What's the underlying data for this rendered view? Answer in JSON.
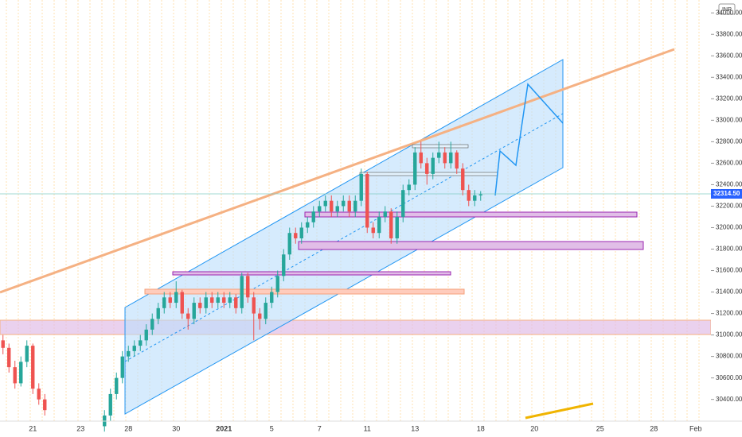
{
  "chart_data": {
    "type": "candlestick",
    "currency": "INR",
    "categories": [
      null,
      null,
      null,
      null,
      null,
      "21",
      null,
      null,
      null,
      null,
      null,
      null,
      null,
      "23",
      null,
      null,
      null,
      null,
      null,
      null,
      null,
      "28",
      null,
      null,
      null,
      null,
      null,
      null,
      null,
      "30",
      null,
      null,
      null,
      null,
      null,
      null,
      null,
      "2021",
      null,
      null,
      null,
      null,
      null,
      null,
      null,
      "5",
      null,
      null,
      null,
      null,
      null,
      null,
      null,
      "7",
      null,
      null,
      null,
      null,
      null,
      null,
      null,
      "11",
      null,
      null,
      null,
      null,
      null,
      null,
      null,
      "13",
      null,
      null,
      null,
      null,
      null,
      null,
      null,
      null,
      null,
      null,
      "18",
      null,
      null,
      null,
      null,
      null,
      null,
      null,
      null,
      "20",
      null,
      null,
      null,
      null,
      null,
      null,
      null,
      null,
      null,
      null,
      "25",
      null,
      null,
      null,
      null,
      null,
      null,
      null,
      null,
      "28",
      null,
      null,
      null,
      null,
      null,
      null,
      "Feb",
      null
    ],
    "open": [
      30950,
      30880,
      30700,
      30550,
      30750,
      30900,
      30500,
      30400,
      null,
      null,
      null,
      null,
      null,
      null,
      null,
      null,
      null,
      30150,
      30250,
      30450,
      30600,
      30800,
      30850,
      30900,
      30950,
      31050,
      31150,
      31250,
      31350,
      31300,
      31400,
      31200,
      31150,
      31300,
      31250,
      31350,
      31300,
      31350,
      31300,
      31350,
      31250,
      31550,
      31350,
      31200,
      31150,
      31300,
      31400,
      31550,
      31750,
      31950,
      31900,
      32000,
      32050,
      32150,
      32200,
      32250,
      32150,
      32200,
      32250,
      32150,
      32250,
      32500,
      32000,
      31950,
      32100,
      32150,
      31900,
      32100,
      32350,
      32400,
      32700,
      32600,
      32500,
      32650,
      32700,
      32600,
      32700,
      32550,
      32350,
      32250,
      32300,
      null,
      null,
      null,
      null,
      null,
      null,
      null,
      null,
      null,
      null,
      null,
      null,
      null,
      null,
      null,
      null,
      null,
      null,
      null,
      null,
      null,
      null,
      null,
      null,
      null,
      null,
      null,
      null,
      null,
      null,
      null,
      null,
      null,
      null,
      null,
      null,
      null
    ],
    "high": [
      31000,
      30920,
      30760,
      30800,
      30950,
      30920,
      30550,
      30450,
      null,
      null,
      null,
      null,
      null,
      null,
      null,
      null,
      null,
      30300,
      30500,
      30650,
      30850,
      30900,
      30950,
      31000,
      31100,
      31200,
      31300,
      31400,
      31400,
      31500,
      31420,
      31250,
      31350,
      31350,
      31400,
      31400,
      31400,
      31400,
      31400,
      31380,
      31580,
      31580,
      31400,
      31250,
      31350,
      31450,
      31600,
      31800,
      32000,
      32000,
      32050,
      32100,
      32200,
      32250,
      32300,
      32300,
      32250,
      32300,
      32300,
      32300,
      32550,
      32520,
      32050,
      32150,
      32200,
      32180,
      32150,
      32400,
      32450,
      32750,
      32800,
      32650,
      32700,
      32800,
      32750,
      32800,
      32720,
      32600,
      32400,
      32350,
      32340,
      null,
      null,
      null,
      null,
      null,
      null,
      null,
      null,
      null,
      null,
      null,
      null,
      null,
      null,
      null,
      null,
      null,
      null,
      null,
      null,
      null,
      null,
      null,
      null,
      null,
      null,
      null,
      null,
      null,
      null,
      null,
      null,
      null,
      null,
      null,
      null,
      null
    ],
    "low": [
      30820,
      30650,
      30500,
      30520,
      30700,
      30450,
      30350,
      30250,
      null,
      null,
      null,
      null,
      null,
      null,
      null,
      null,
      null,
      30100,
      30200,
      30400,
      30550,
      30750,
      30800,
      30850,
      30900,
      31000,
      31100,
      31200,
      31250,
      31250,
      31150,
      31050,
      31100,
      31200,
      31200,
      31250,
      31250,
      31250,
      31250,
      31200,
      31200,
      31300,
      30950,
      31050,
      31100,
      31250,
      31350,
      31500,
      31700,
      31850,
      31850,
      31950,
      32000,
      32100,
      32150,
      32100,
      32100,
      32150,
      32100,
      32100,
      32200,
      31950,
      31900,
      31900,
      32050,
      31850,
      31850,
      32050,
      32300,
      32350,
      32550,
      32400,
      32450,
      32600,
      32550,
      32550,
      32500,
      32300,
      32200,
      32200,
      32250,
      null,
      null,
      null,
      null,
      null,
      null,
      null,
      null,
      null,
      null,
      null,
      null,
      null,
      null,
      null,
      null,
      null,
      null,
      null,
      null,
      null,
      null,
      null,
      null,
      null,
      null,
      null,
      null,
      null,
      null,
      null,
      null,
      null,
      null,
      null,
      null,
      null
    ],
    "close": [
      30880,
      30700,
      30550,
      30750,
      30900,
      30500,
      30400,
      30300,
      null,
      null,
      null,
      null,
      null,
      null,
      null,
      null,
      null,
      30250,
      30450,
      30600,
      30800,
      30850,
      30900,
      30950,
      31050,
      31150,
      31250,
      31350,
      31300,
      31400,
      31200,
      31150,
      31300,
      31250,
      31350,
      31300,
      31350,
      31300,
      31350,
      31250,
      31550,
      31350,
      31200,
      31150,
      31300,
      31400,
      31550,
      31750,
      31950,
      31900,
      32000,
      32050,
      32150,
      32200,
      32250,
      32150,
      32200,
      32250,
      32150,
      32250,
      32500,
      32000,
      31950,
      32100,
      32150,
      31900,
      32100,
      32350,
      32400,
      32700,
      32600,
      32500,
      32650,
      32700,
      32600,
      32700,
      32550,
      32350,
      32250,
      32300,
      32310,
      null,
      null,
      null,
      null,
      null,
      null,
      null,
      null,
      null,
      null,
      null,
      null,
      null,
      null,
      null,
      null,
      null,
      null,
      null,
      null,
      null,
      null,
      null,
      null,
      null,
      null,
      null,
      null,
      null,
      null,
      null,
      null,
      null,
      null,
      null,
      null,
      null
    ],
    "up_color": "#26a69a",
    "down_color": "#ef5350",
    "ylim": [
      30220,
      34120
    ],
    "yticks": [
      {
        "value": 30400,
        "label": "30400.00"
      },
      {
        "value": 30600,
        "label": "30600.00"
      },
      {
        "value": 30800,
        "label": "30800.00"
      },
      {
        "value": 31000,
        "label": "31000.00"
      },
      {
        "value": 31200,
        "label": "31200.00"
      },
      {
        "value": 31400,
        "label": "31400.00"
      },
      {
        "value": 31600,
        "label": "31600.00"
      },
      {
        "value": 31800,
        "label": "31800.00"
      },
      {
        "value": 32000,
        "label": "32000.00"
      },
      {
        "value": 32200,
        "label": "32200.00"
      },
      {
        "value": 32400,
        "label": "32400.00"
      },
      {
        "value": 32600,
        "label": "32600.00"
      },
      {
        "value": 32800,
        "label": "32800.00"
      },
      {
        "value": 33000,
        "label": "33000.00"
      },
      {
        "value": 33200,
        "label": "33200.00"
      },
      {
        "value": 33400,
        "label": "33400.00"
      },
      {
        "value": 33600,
        "label": "33600.00"
      },
      {
        "value": 33800,
        "label": "33800.00"
      },
      {
        "value": 34000,
        "label": "34000.00"
      }
    ],
    "last_price": {
      "value": 32314.5,
      "label": "32314.50"
    }
  }
}
